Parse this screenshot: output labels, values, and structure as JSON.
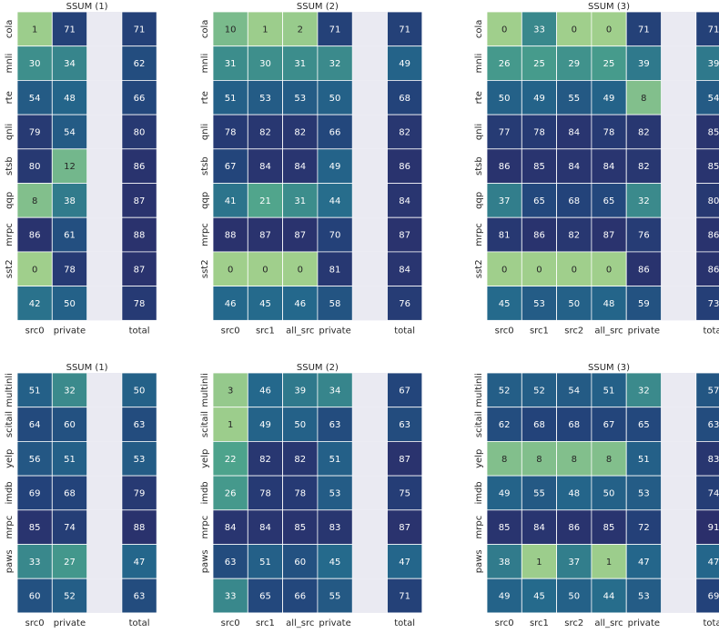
{
  "colormap": {
    "low": "#a0cf8c",
    "mid_low": "#4aa18c",
    "mid": "#24698c",
    "mid_high": "#23437a",
    "high": "#2b2f6b",
    "gap": "#eaeaf2",
    "border": "#ffffff"
  },
  "chart_data": [
    {
      "type": "heatmap",
      "title": "SSUM (1)",
      "columns": [
        "src0",
        "private",
        "",
        "total"
      ],
      "rows": [
        "cola",
        "mnli",
        "rte",
        "qnli",
        "stsb",
        "qqp",
        "mrpc",
        "sst2",
        ""
      ],
      "values": [
        [
          1,
          71,
          null,
          71
        ],
        [
          30,
          34,
          null,
          62
        ],
        [
          54,
          48,
          null,
          66
        ],
        [
          79,
          54,
          null,
          80
        ],
        [
          80,
          12,
          null,
          86
        ],
        [
          8,
          38,
          null,
          87
        ],
        [
          86,
          61,
          null,
          88
        ],
        [
          0,
          78,
          null,
          87
        ],
        [
          42,
          50,
          null,
          78
        ]
      ]
    },
    {
      "type": "heatmap",
      "title": "SSUM (2)",
      "columns": [
        "src0",
        "src1",
        "all_src",
        "private",
        "",
        "total"
      ],
      "rows": [
        "cola",
        "mnli",
        "rte",
        "qnli",
        "stsb",
        "qqp",
        "mrpc",
        "sst2",
        ""
      ],
      "values": [
        [
          10,
          1,
          2,
          71,
          null,
          71
        ],
        [
          31,
          30,
          31,
          32,
          null,
          49
        ],
        [
          51,
          53,
          53,
          50,
          null,
          68
        ],
        [
          78,
          82,
          82,
          66,
          null,
          82
        ],
        [
          67,
          84,
          84,
          49,
          null,
          86
        ],
        [
          41,
          21,
          31,
          44,
          null,
          84
        ],
        [
          88,
          87,
          87,
          70,
          null,
          87
        ],
        [
          0,
          0,
          0,
          81,
          null,
          84
        ],
        [
          46,
          45,
          46,
          58,
          null,
          76
        ]
      ]
    },
    {
      "type": "heatmap",
      "title": "SSUM (3)",
      "columns": [
        "src0",
        "src1",
        "src2",
        "all_src",
        "private",
        "",
        "total"
      ],
      "rows": [
        "cola",
        "mnli",
        "rte",
        "qnli",
        "stsb",
        "qqp",
        "mrpc",
        "sst2",
        ""
      ],
      "values": [
        [
          0,
          33,
          0,
          0,
          71,
          null,
          71
        ],
        [
          26,
          25,
          29,
          25,
          39,
          null,
          39
        ],
        [
          50,
          49,
          55,
          49,
          8,
          null,
          54
        ],
        [
          77,
          78,
          84,
          78,
          82,
          null,
          85
        ],
        [
          86,
          85,
          84,
          84,
          82,
          null,
          85
        ],
        [
          37,
          65,
          68,
          65,
          32,
          null,
          80
        ],
        [
          81,
          86,
          82,
          87,
          76,
          null,
          86
        ],
        [
          0,
          0,
          0,
          0,
          86,
          null,
          86
        ],
        [
          45,
          53,
          50,
          48,
          59,
          null,
          73
        ]
      ]
    },
    {
      "type": "heatmap",
      "title": "SSUM (1)",
      "columns": [
        "src0",
        "private",
        "",
        "total"
      ],
      "rows": [
        "multinli",
        "scitail",
        "yelp",
        "imdb",
        "mrpc",
        "paws",
        ""
      ],
      "values": [
        [
          51,
          32,
          null,
          50
        ],
        [
          64,
          60,
          null,
          63
        ],
        [
          56,
          51,
          null,
          53
        ],
        [
          69,
          68,
          null,
          79
        ],
        [
          85,
          74,
          null,
          88
        ],
        [
          33,
          27,
          null,
          47
        ],
        [
          60,
          52,
          null,
          63
        ]
      ]
    },
    {
      "type": "heatmap",
      "title": "SSUM (2)",
      "columns": [
        "src0",
        "src1",
        "all_src",
        "private",
        "",
        "total"
      ],
      "rows": [
        "multinli",
        "scitail",
        "yelp",
        "imdb",
        "mrpc",
        "paws",
        ""
      ],
      "values": [
        [
          3,
          46,
          39,
          34,
          null,
          67
        ],
        [
          1,
          49,
          50,
          63,
          null,
          63
        ],
        [
          22,
          82,
          82,
          51,
          null,
          87
        ],
        [
          26,
          78,
          78,
          53,
          null,
          75
        ],
        [
          84,
          84,
          85,
          83,
          null,
          87
        ],
        [
          63,
          51,
          60,
          45,
          null,
          47
        ],
        [
          33,
          65,
          66,
          55,
          null,
          71
        ]
      ]
    },
    {
      "type": "heatmap",
      "title": "SSUM (3)",
      "columns": [
        "src0",
        "src1",
        "src2",
        "all_src",
        "private",
        "",
        "total"
      ],
      "rows": [
        "multinli",
        "scitail",
        "yelp",
        "imdb",
        "mrpc",
        "paws",
        ""
      ],
      "values": [
        [
          52,
          52,
          54,
          51,
          32,
          null,
          57
        ],
        [
          62,
          68,
          68,
          67,
          65,
          null,
          63
        ],
        [
          8,
          8,
          8,
          8,
          51,
          null,
          83
        ],
        [
          49,
          55,
          48,
          50,
          53,
          null,
          74
        ],
        [
          85,
          84,
          86,
          85,
          72,
          null,
          91
        ],
        [
          38,
          1,
          37,
          1,
          47,
          null,
          47
        ],
        [
          49,
          45,
          50,
          44,
          53,
          null,
          69
        ]
      ]
    }
  ]
}
